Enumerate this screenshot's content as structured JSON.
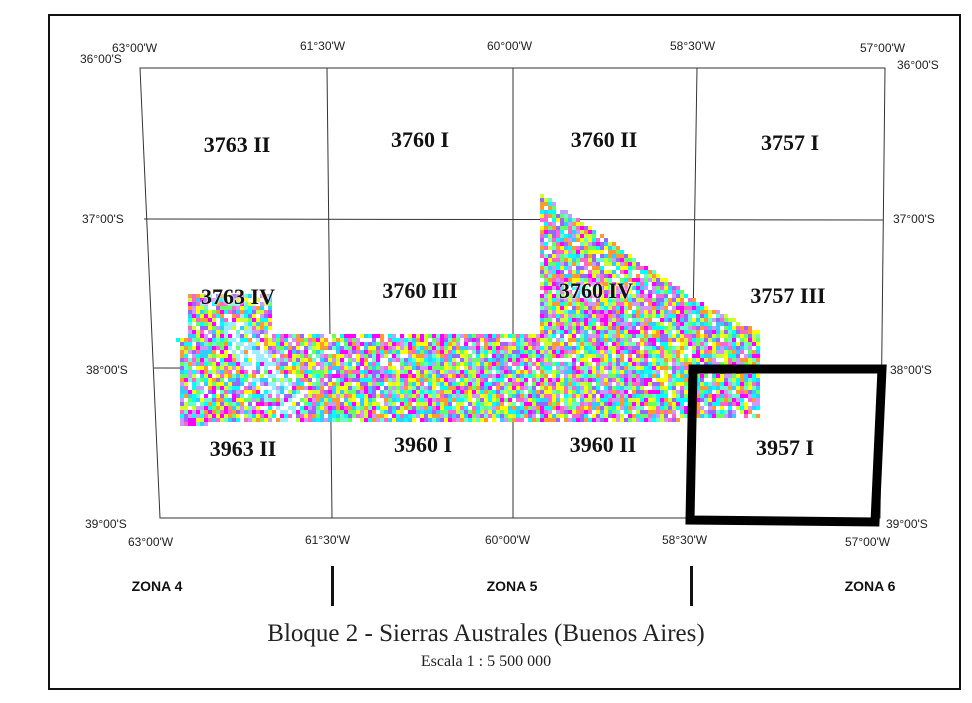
{
  "map": {
    "top_longitudes": [
      "63°00'W",
      "61°30'W",
      "60°00'W",
      "58°30'W",
      "57°00'W"
    ],
    "bottom_longitudes": [
      "63°00'W",
      "61°30'W",
      "60°00'W",
      "58°30'W",
      "57°00'W"
    ],
    "left_latitudes": [
      "36°00'S",
      "37°00'S",
      "38°00'S",
      "39°00'S"
    ],
    "right_latitudes": [
      "36°00'S",
      "37°00'S",
      "38°00'S",
      "39°00'S"
    ],
    "sheets": [
      {
        "label": "3763 II"
      },
      {
        "label": "3760 I"
      },
      {
        "label": "3760 II"
      },
      {
        "label": "3757 I"
      },
      {
        "label": "3763 IV"
      },
      {
        "label": "3760 III"
      },
      {
        "label": "3760 IV"
      },
      {
        "label": "3757 III"
      },
      {
        "label": "3963 II"
      },
      {
        "label": "3960 I"
      },
      {
        "label": "3960 II"
      },
      {
        "label": "3957 I"
      }
    ],
    "highlighted_sheet": "3957 I",
    "noise_colors": [
      "#ff00ff",
      "#ffff00",
      "#00ffff",
      "#9966ff",
      "#66ff66",
      "#ff66cc",
      "#33ccff",
      "#ccff33",
      "#ff9933",
      "#ffffff",
      "#cc99ff",
      "#66ffcc"
    ]
  },
  "zones": {
    "zona4": "ZONA 4",
    "zona5": "ZONA 5",
    "zona6": "ZONA 6"
  },
  "title": "Bloque 2 - Sierras Australes (Buenos Aires)",
  "scale": "Escala 1 : 5 500 000"
}
